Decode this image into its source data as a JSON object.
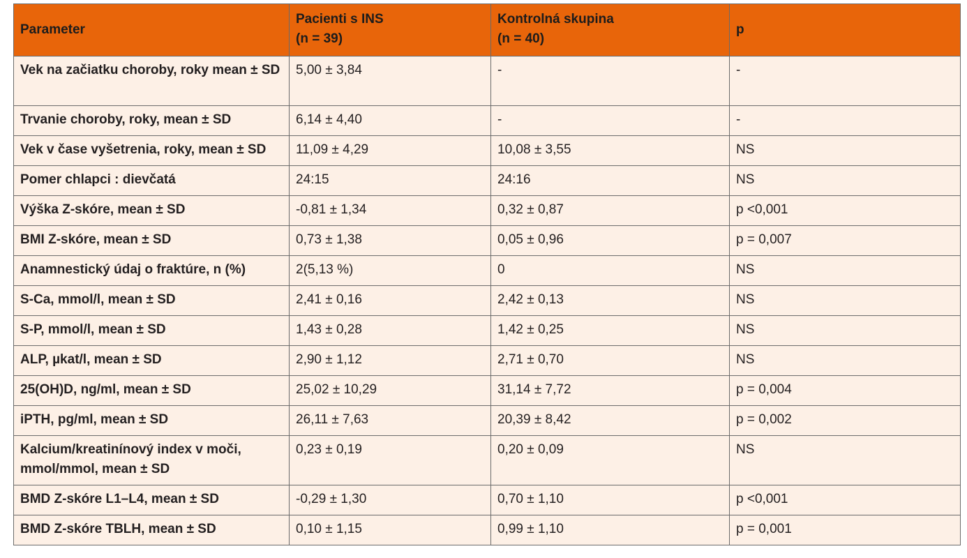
{
  "table": {
    "headers": [
      {
        "line1": "Parameter",
        "line2": ""
      },
      {
        "line1": "Pacienti s INS",
        "line2": "(n = 39)"
      },
      {
        "line1": "Kontrolná skupina",
        "line2": "(n = 40)"
      },
      {
        "line1": "p",
        "line2": ""
      }
    ],
    "rows": [
      {
        "param": "Vek na začiatku choroby, roky mean ± SD",
        "ins": "5,00  ± 3,84",
        "control": "-",
        "p": "-"
      },
      {
        "param": "Trvanie choroby, roky, mean ± SD",
        "ins": "6,14 ± 4,40",
        "control": "-",
        "p": "-"
      },
      {
        "param": "Vek v čase vyšetrenia, roky, mean ± SD",
        "ins": "11,09 ± 4,29",
        "control": "10,08 ± 3,55",
        "p": "NS"
      },
      {
        "param": "Pomer chlapci : dievčatá",
        "ins": "24:15",
        "control": "24:16",
        "p": "NS"
      },
      {
        "param": "Výška Z-skóre, mean ± SD",
        "ins": "-0,81 ± 1,34",
        "control": "0,32 ± 0,87",
        "p": "p <0,001"
      },
      {
        "param": "BMI Z-skóre, mean ± SD",
        "ins": "0,73 ± 1,38",
        "control": "0,05 ± 0,96",
        "p": "p = 0,007"
      },
      {
        "param": "Anamnestický údaj o fraktúre, n (%)",
        "ins": "2(5,13 %)",
        "control": "0",
        "p": "NS"
      },
      {
        "param": "S-Ca, mmol/l, mean ± SD",
        "ins": "2,41 ± 0,16",
        "control": "2,42 ± 0,13",
        "p": "NS"
      },
      {
        "param": "S-P, mmol/l, mean ± SD",
        "ins": "1,43 ± 0,28",
        "control": "1,42 ± 0,25",
        "p": "NS"
      },
      {
        "param": "ALP, µkat/l,  mean ± SD",
        "ins": "2,90 ± 1,12",
        "control": "2,71 ± 0,70",
        "p": "NS"
      },
      {
        "param": "25(OH)D, ng/ml, mean ± SD",
        "ins": "25,02  ± 10,29",
        "control": "31,14 ± 7,72",
        "p": "p = 0,004"
      },
      {
        "param": "iPTH, pg/ml, mean ± SD",
        "ins": "26,11 ± 7,63",
        "control": "20,39 ± 8,42",
        "p": "p = 0,002"
      },
      {
        "param": "Kalcium/kreatinínový index v moči, mmol/mmol, mean ± SD",
        "ins": "0,23 ± 0,19",
        "control": "0,20 ± 0,09",
        "p": "NS"
      },
      {
        "param": "BMD Z-skóre L1–L4, mean ± SD",
        "ins": "-0,29 ± 1,30",
        "control": "0,70 ± 1,10",
        "p": "p <0,001"
      },
      {
        "param": "BMD Z-skóre TBLH, mean ± SD",
        "ins": "0,10 ± 1,15",
        "control": "0,99 ± 1,10",
        "p": "p = 0,001"
      }
    ]
  },
  "colors": {
    "header_bg": "#e8650a",
    "row_bg": "#fdf0e6",
    "border": "#6b6b6b"
  }
}
